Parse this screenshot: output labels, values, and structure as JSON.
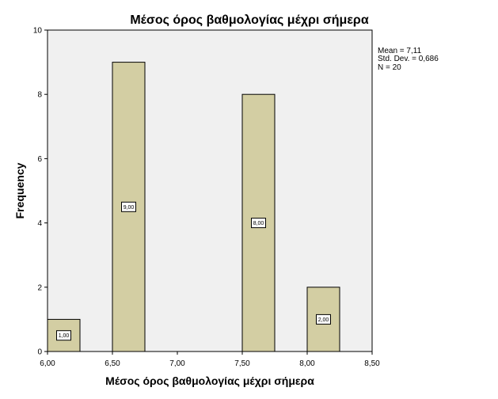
{
  "chart_data": {
    "type": "bar",
    "title": "Μέσος όρος βαθμολογίας μέχρι σήμερα",
    "xlabel": "Μέσος όρος βαθμολογίας μέχρι σήμερα",
    "ylabel": "Frequency",
    "xlim": [
      6.0,
      8.5
    ],
    "ylim": [
      0,
      10
    ],
    "x_ticks": [
      "6,00",
      "6,50",
      "7,00",
      "7,50",
      "8,00",
      "8,50"
    ],
    "y_ticks": [
      "0",
      "2",
      "4",
      "6",
      "8",
      "10"
    ],
    "bin_width": 0.25,
    "bars": [
      {
        "bin_start": 6.0,
        "value": 1,
        "label": "1,00"
      },
      {
        "bin_start": 6.5,
        "value": 9,
        "label": "9,00"
      },
      {
        "bin_start": 7.5,
        "value": 8,
        "label": "8,00"
      },
      {
        "bin_start": 8.0,
        "value": 2,
        "label": "2,00"
      }
    ],
    "stats": {
      "mean": "Mean = 7,11",
      "std": "Std. Dev. = 0,686",
      "n": "N = 20"
    },
    "colors": {
      "bar_fill": "#d3cea3",
      "plot_background": "#f0f0f0"
    },
    "grid": false
  }
}
